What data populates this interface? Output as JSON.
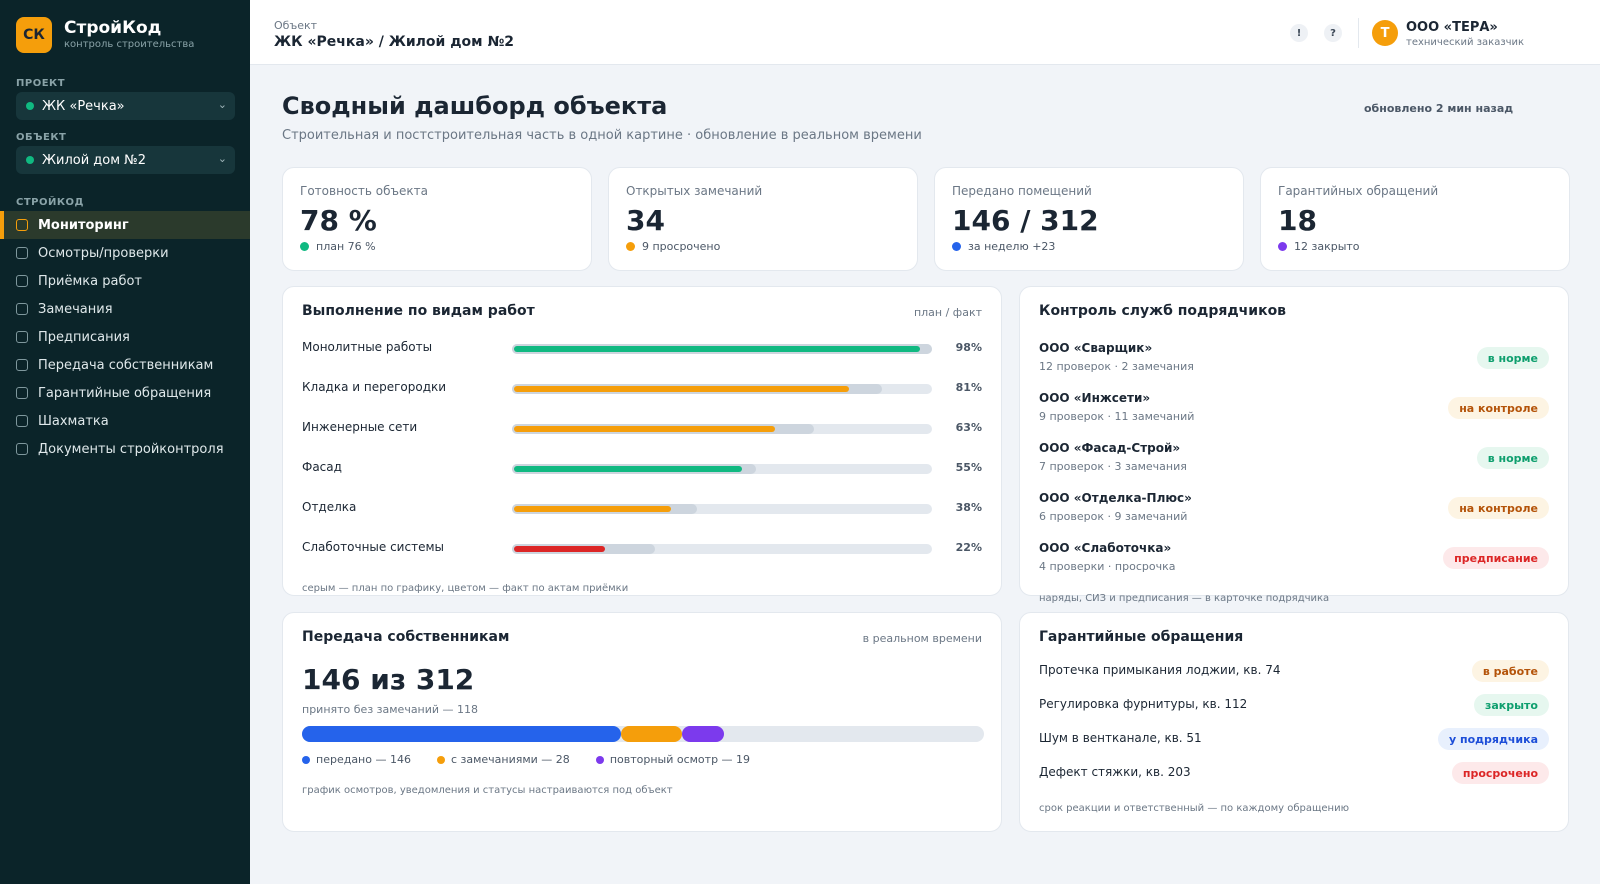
{
  "app": {
    "logo": "СК",
    "name": "СтройКод",
    "subtitle": "контроль строительства"
  },
  "sidebar": {
    "project_label": "ПРОЕКТ",
    "project_value": "ЖК «Речка»",
    "object_label": "ОБЪЕКТ",
    "object_value": "Жилой дом №2",
    "section_label": "СТРОЙКОД",
    "items": [
      {
        "label": "Мониторинг",
        "active": true
      },
      {
        "label": "Осмотры/проверки"
      },
      {
        "label": "Приёмка работ"
      },
      {
        "label": "Замечания"
      },
      {
        "label": "Предписания"
      },
      {
        "label": "Передача собственникам"
      },
      {
        "label": "Гарантийные обращения"
      },
      {
        "label": "Шахматка"
      },
      {
        "label": "Документы стройконтроля"
      }
    ]
  },
  "header": {
    "label": "Объект",
    "title": "ЖК «Речка» / Жилой дом №2",
    "icon_alert": "!",
    "icon_help": "?",
    "avatar": "Т",
    "user_name": "ООО «ТЕРА»",
    "user_role": "технический заказчик"
  },
  "page": {
    "title": "Сводный дашборд объекта",
    "subtitle": "Строительная и постстроительная часть в одной картине · обновление в реальном времени",
    "updated": "обновлено 2 мин назад"
  },
  "kpis": [
    {
      "label": "Готовность объекта",
      "value": "78 %",
      "note": "план 76 %",
      "color": "#10b981"
    },
    {
      "label": "Открытых замечаний",
      "value": "34",
      "note": "9 просрочено",
      "color": "#f59e0b"
    },
    {
      "label": "Передано помещений",
      "value": "146 / 312",
      "note": "за неделю +23",
      "color": "#2563eb"
    },
    {
      "label": "Гарантийных обращений",
      "value": "18",
      "note": "12 закрыто",
      "color": "#7c3aed"
    }
  ],
  "works": {
    "title": "Выполнение по видам работ",
    "meta": "план / факт",
    "footnote": "серым — план по графику, цветом — факт по актам приёмки",
    "rows": [
      {
        "name": "Монолитные работы",
        "plan": 1.0,
        "fact": 0.98,
        "pct": "98%",
        "color": "#10b981"
      },
      {
        "name": "Кладка и перегородки",
        "plan": 0.88,
        "fact": 0.81,
        "pct": "81%",
        "color": "#f59e0b"
      },
      {
        "name": "Инженерные сети",
        "plan": 0.72,
        "fact": 0.63,
        "pct": "63%",
        "color": "#f59e0b"
      },
      {
        "name": "Фасад",
        "plan": 0.58,
        "fact": 0.55,
        "pct": "55%",
        "color": "#10b981"
      },
      {
        "name": "Отделка",
        "plan": 0.44,
        "fact": 0.38,
        "pct": "38%",
        "color": "#f59e0b"
      },
      {
        "name": "Слаботочные системы",
        "plan": 0.34,
        "fact": 0.22,
        "pct": "22%",
        "color": "#dc2626"
      }
    ]
  },
  "contractors": {
    "title": "Контроль служб подрядчиков",
    "footnote": "наряды, СИЗ и предписания — в карточке подрядчика",
    "rows": [
      {
        "name": "ООО «Сварщик»",
        "sub": "12 проверок · 2 замечания",
        "status": "в норме",
        "tone": "b-green"
      },
      {
        "name": "ООО «Инжсети»",
        "sub": "9 проверок · 11 замечаний",
        "status": "на контроле",
        "tone": "b-amber"
      },
      {
        "name": "ООО «Фасад-Строй»",
        "sub": "7 проверок · 3 замечания",
        "status": "в норме",
        "tone": "b-green"
      },
      {
        "name": "ООО «Отделка-Плюс»",
        "sub": "6 проверок · 9 замечаний",
        "status": "на контроле",
        "tone": "b-amber"
      },
      {
        "name": "ООО «Слаботочка»",
        "sub": "4 проверки · просрочка",
        "status": "предписание",
        "tone": "b-red"
      }
    ]
  },
  "handover": {
    "title": "Передача собственникам",
    "meta": "в реальном времени",
    "big": "146 из 312",
    "accepted": "принято без замечаний — 118",
    "total": 312,
    "segments": [
      {
        "label": "передано — 146",
        "value": 146,
        "color": "#2563eb"
      },
      {
        "label": "с замечаниями — 28",
        "value": 28,
        "color": "#f59e0b"
      },
      {
        "label": "повторный осмотр — 19",
        "value": 19,
        "color": "#7c3aed"
      }
    ],
    "footnote": "график осмотров, уведомления и статусы настраиваются под объект"
  },
  "warranty": {
    "title": "Гарантийные обращения",
    "footnote": "срок реакции и ответственный — по каждому обращению",
    "rows": [
      {
        "text": "Протечка примыкания лоджии, кв. 74",
        "status": "в работе",
        "tone": "b-amber"
      },
      {
        "text": "Регулировка фурнитуры, кв. 112",
        "status": "закрыто",
        "tone": "b-green"
      },
      {
        "text": "Шум в вентканале, кв. 51",
        "status": "у подрядчика",
        "tone": "b-blue"
      },
      {
        "text": "Дефект стяжки, кв. 203",
        "status": "просрочено",
        "tone": "b-red"
      }
    ]
  }
}
